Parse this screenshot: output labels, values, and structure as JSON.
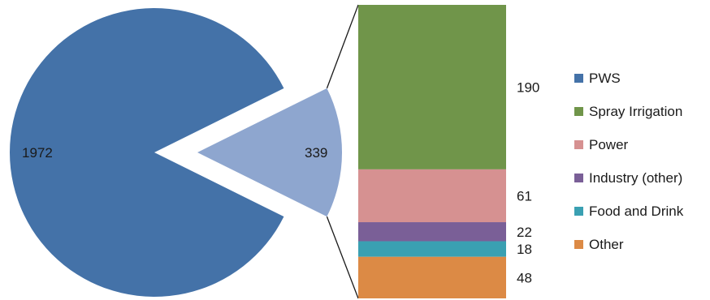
{
  "chart_data": {
    "type": "bar-of-pie",
    "pie": [
      {
        "label": "1972",
        "value": 1972,
        "color": "#4472a8"
      },
      {
        "label": "339",
        "value": 339,
        "color": "#8ea6cf"
      }
    ],
    "stack": [
      {
        "name": "PWS",
        "value": null,
        "label": "",
        "color": "#4472a8"
      },
      {
        "name": "Spray Irrigation",
        "value": 190,
        "label": "190",
        "color": "#70954a"
      },
      {
        "name": "Power",
        "value": 61,
        "label": "61",
        "color": "#d69191"
      },
      {
        "name": "Industry (other)",
        "value": 22,
        "label": "22",
        "color": "#7a5f97"
      },
      {
        "name": "Food and Drink",
        "value": 18,
        "label": "18",
        "color": "#3aa0b2"
      },
      {
        "name": "Other",
        "value": 48,
        "label": "48",
        "color": "#dc8a45"
      }
    ],
    "legend": [
      "PWS",
      "Spray Irrigation",
      "Power",
      "Industry (other)",
      "Food and Drink",
      "Other"
    ],
    "legend_position": "right"
  }
}
